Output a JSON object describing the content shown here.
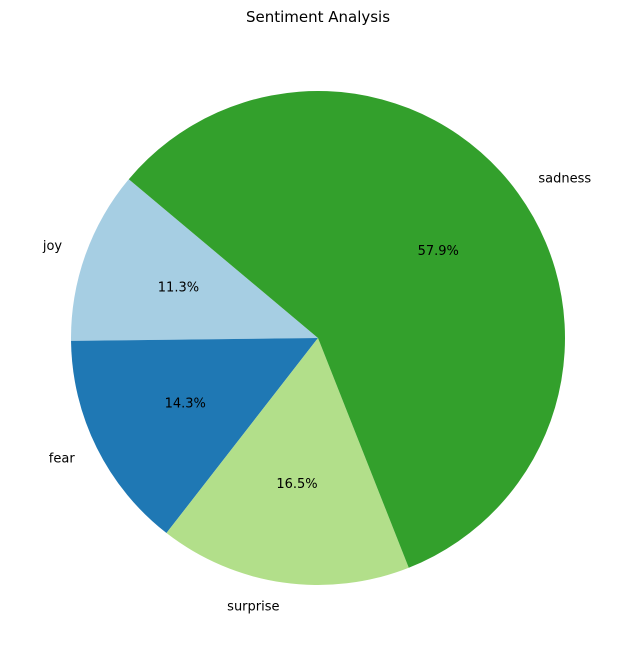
{
  "chart_data": {
    "type": "pie",
    "title": "Sentiment Analysis",
    "categories": [
      "joy",
      "fear",
      "surprise",
      "sadness"
    ],
    "values": [
      11.3,
      14.3,
      16.5,
      57.9
    ],
    "value_labels": [
      "11.3%",
      "14.3%",
      "16.5%",
      "57.9%"
    ],
    "colors": [
      "#a6cee3",
      "#1f78b4",
      "#b2df8a",
      "#33a02c"
    ],
    "start_angle_deg": 140,
    "direction": "counterclockwise",
    "legend": "none"
  }
}
